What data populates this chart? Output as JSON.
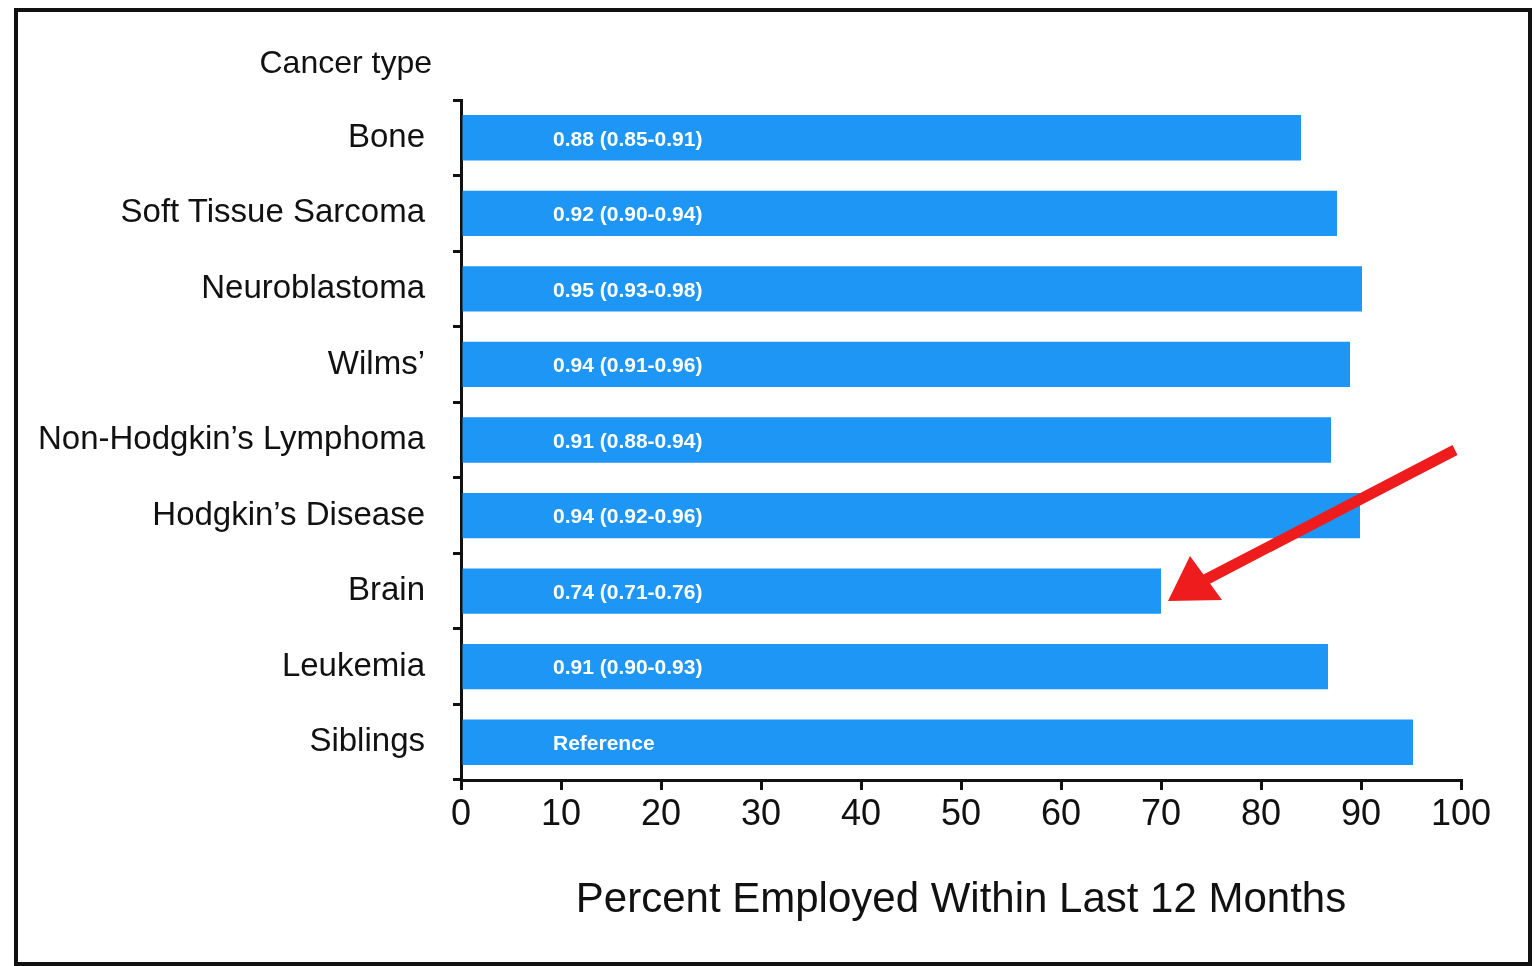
{
  "chart_data": {
    "type": "bar",
    "orientation": "horizontal",
    "ylabel": "Cancer type",
    "xlabel": "Percent Employed Within Last 12 Months",
    "categories": [
      "Bone",
      "Soft Tissue Sarcoma",
      "Neuroblastoma",
      "Wilms’",
      "Non-Hodgkin’s Lymphoma",
      "Hodgkin’s Disease",
      "Brain",
      "Leukemia",
      "Siblings"
    ],
    "values": [
      84,
      87.6,
      90.1,
      88.9,
      87,
      89.9,
      70,
      86.7,
      95.2
    ],
    "annotations": [
      "0.88 (0.85-0.91)",
      "0.92 (0.90-0.94)",
      "0.95 (0.93-0.98)",
      "0.94 (0.91-0.96)",
      "0.91 (0.88-0.94)",
      "0.94 (0.92-0.96)",
      "0.74 (0.71-0.76)",
      "0.91 (0.90-0.93)",
      "Reference"
    ],
    "color": "#1e96f5",
    "xlim": [
      0,
      100
    ],
    "xticks": [
      0,
      10,
      20,
      30,
      40,
      50,
      60,
      70,
      80,
      90,
      100
    ],
    "grid": false,
    "legend": false
  }
}
